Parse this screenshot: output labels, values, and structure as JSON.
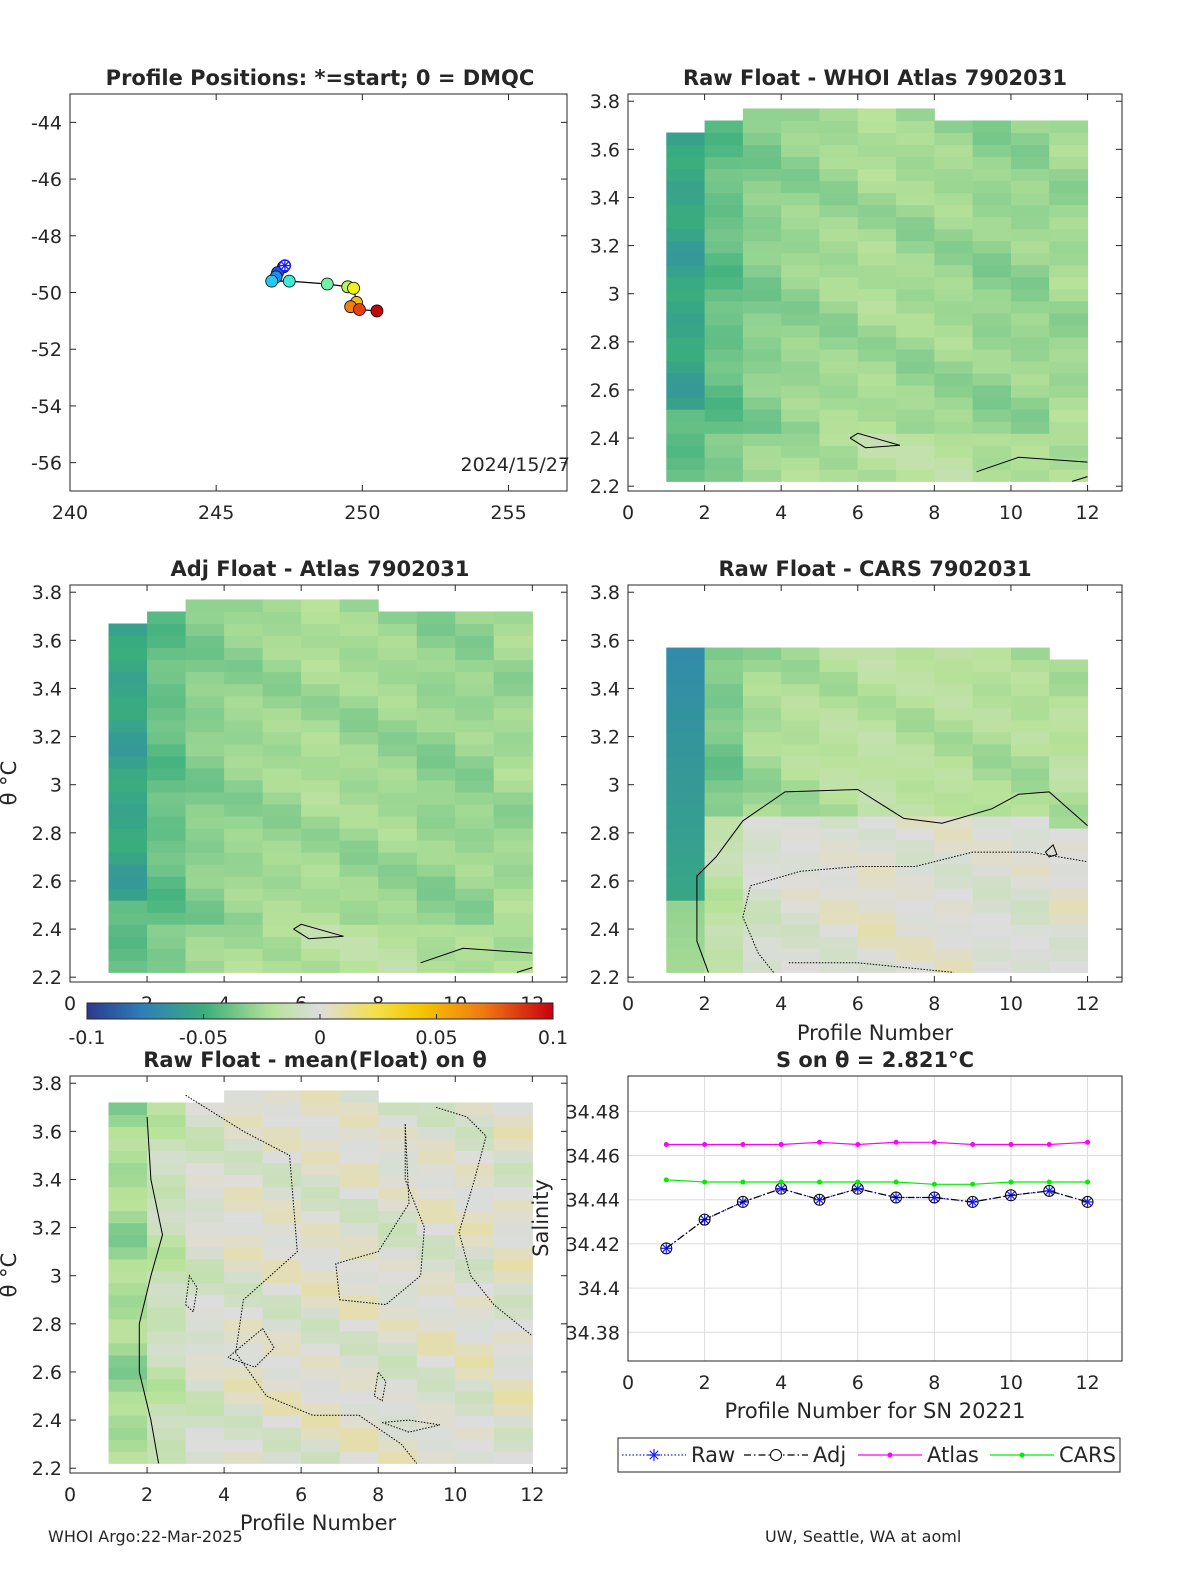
{
  "footer": {
    "left": "WHOI Argo:22-Mar-2025",
    "right": "UW, Seattle, WA at aoml"
  },
  "colorbar": {
    "ticks": [
      "-0.1",
      "-0.05",
      "0",
      "0.05",
      "0.1"
    ],
    "range": [
      -0.1,
      0.1
    ]
  },
  "chart_data": [
    {
      "id": "positions",
      "type": "scatter",
      "title": "Profile Positions: *=start; 0 = DMQC",
      "annotation": "2024/15/27",
      "xlim": [
        240,
        257
      ],
      "ylim": [
        -57,
        -43
      ],
      "xticks": [
        "240",
        "245",
        "250",
        "255"
      ],
      "yticks": [
        "-44",
        "-46",
        "-48",
        "-50",
        "-52",
        "-54",
        "-56"
      ],
      "track": {
        "x": [
          247.3,
          247.1,
          247.05,
          246.9,
          247.5,
          248.8,
          249.5,
          249.7,
          249.8,
          249.6,
          249.9,
          250.5
        ],
        "y": [
          -49.1,
          -49.3,
          -49.45,
          -49.6,
          -49.6,
          -49.7,
          -49.8,
          -49.85,
          -50.35,
          -50.5,
          -50.6,
          -50.65
        ]
      },
      "start": {
        "x": 247.35,
        "y": -49.05
      }
    },
    {
      "id": "raw-atlas",
      "type": "heatmap",
      "title": "Raw Float - WHOI Atlas  7902031",
      "xlim": [
        0,
        12.9
      ],
      "ylim": [
        2.18,
        3.83
      ],
      "xticks": [
        "0",
        "2",
        "4",
        "6",
        "8",
        "10",
        "12"
      ],
      "yticks": [
        "2.2",
        "2.4",
        "2.6",
        "2.8",
        "3",
        "3.2",
        "3.4",
        "3.6",
        "3.8"
      ],
      "profiles": 12,
      "tops": [
        3.67,
        3.72,
        3.77,
        3.77,
        3.77,
        3.77,
        3.77,
        3.72,
        3.72,
        3.72,
        3.72,
        3.72
      ],
      "bottom": 2.22,
      "base_values": [
        -0.055,
        -0.04,
        -0.032,
        -0.028,
        -0.026,
        -0.024,
        -0.026,
        -0.026,
        -0.029,
        -0.028,
        -0.027,
        -0.026
      ]
    },
    {
      "id": "adj-atlas",
      "type": "heatmap",
      "title": "Adj Float - Atlas  7902031",
      "ylabel": "θ °C",
      "xlim": [
        0,
        12.9
      ],
      "ylim": [
        2.18,
        3.83
      ],
      "xticks": [
        "0",
        "2",
        "4",
        "6",
        "8",
        "10",
        "12"
      ],
      "yticks": [
        "2.2",
        "2.4",
        "2.6",
        "2.8",
        "3",
        "3.2",
        "3.4",
        "3.6",
        "3.8"
      ],
      "profiles": 12,
      "tops": [
        3.67,
        3.72,
        3.77,
        3.77,
        3.77,
        3.77,
        3.77,
        3.72,
        3.72,
        3.72,
        3.72,
        3.72
      ],
      "bottom": 2.22,
      "base_values": [
        -0.055,
        -0.04,
        -0.032,
        -0.028,
        -0.026,
        -0.024,
        -0.026,
        -0.026,
        -0.029,
        -0.028,
        -0.027,
        -0.026
      ]
    },
    {
      "id": "raw-cars",
      "type": "heatmap",
      "title": "Raw Float - CARS  7902031",
      "xlabel": "Profile Number",
      "xlim": [
        0,
        12.9
      ],
      "ylim": [
        2.18,
        3.83
      ],
      "xticks": [
        "0",
        "2",
        "4",
        "6",
        "8",
        "10",
        "12"
      ],
      "yticks": [
        "2.2",
        "2.4",
        "2.6",
        "2.8",
        "3",
        "3.2",
        "3.4",
        "3.6",
        "3.8"
      ],
      "profiles": 12,
      "tops": [
        3.57,
        3.57,
        3.57,
        3.57,
        3.57,
        3.57,
        3.57,
        3.57,
        3.57,
        3.57,
        3.52,
        3.52
      ],
      "bottom": 2.22,
      "base_values": [
        -0.05,
        -0.035,
        -0.025,
        -0.022,
        -0.02,
        -0.018,
        -0.02,
        -0.02,
        -0.022,
        -0.022,
        -0.02,
        -0.02
      ]
    },
    {
      "id": "raw-mean",
      "type": "heatmap",
      "title": "Raw Float - mean(Float) on θ",
      "ylabel": "θ °C",
      "xlabel": "Profile Number",
      "xlim": [
        0,
        12.9
      ],
      "ylim": [
        2.18,
        3.83
      ],
      "xticks": [
        "0",
        "2",
        "4",
        "6",
        "8",
        "10",
        "12"
      ],
      "yticks": [
        "2.2",
        "2.4",
        "2.6",
        "2.8",
        "3",
        "3.2",
        "3.4",
        "3.6",
        "3.8"
      ],
      "profiles": 12,
      "tops": [
        3.72,
        3.72,
        3.72,
        3.77,
        3.77,
        3.77,
        3.77,
        3.72,
        3.72,
        3.72,
        3.72,
        3.72
      ],
      "bottom": 2.22,
      "base_values": [
        -0.025,
        -0.012,
        -0.004,
        0.0,
        0.0,
        0.0,
        0.0,
        -0.002,
        0.0,
        0.0,
        0.0,
        0.0
      ]
    },
    {
      "id": "salinity",
      "type": "line",
      "title": "S on θ = 2.821°C",
      "xlabel": "Profile Number for SN 20221",
      "ylabel": "Salinity",
      "xlim": [
        0,
        12.9
      ],
      "ylim": [
        34.367,
        34.496
      ],
      "xticks": [
        "0",
        "2",
        "4",
        "6",
        "8",
        "10",
        "12"
      ],
      "yticks": [
        "34.38",
        "34.4",
        "34.42",
        "34.44",
        "34.46",
        "34.48"
      ],
      "x": [
        1,
        2,
        3,
        4,
        5,
        6,
        7,
        8,
        9,
        10,
        11,
        12
      ],
      "series": [
        {
          "name": "Raw",
          "color": "#1a1aff",
          "values": [
            34.418,
            34.431,
            34.439,
            34.445,
            34.44,
            34.445,
            34.441,
            34.441,
            34.439,
            34.442,
            34.444,
            34.439
          ]
        },
        {
          "name": "Adj",
          "color": "#000000",
          "values": [
            34.418,
            34.431,
            34.439,
            34.445,
            34.44,
            34.445,
            34.441,
            34.441,
            34.439,
            34.442,
            34.444,
            34.439
          ]
        },
        {
          "name": "Atlas",
          "color": "#ff00ff",
          "values": [
            34.465,
            34.465,
            34.465,
            34.465,
            34.466,
            34.465,
            34.466,
            34.466,
            34.465,
            34.465,
            34.465,
            34.466
          ]
        },
        {
          "name": "CARS",
          "color": "#00ee00",
          "values": [
            34.449,
            34.448,
            34.448,
            34.448,
            34.448,
            34.448,
            34.448,
            34.447,
            34.447,
            34.448,
            34.448,
            34.448
          ]
        }
      ]
    }
  ]
}
